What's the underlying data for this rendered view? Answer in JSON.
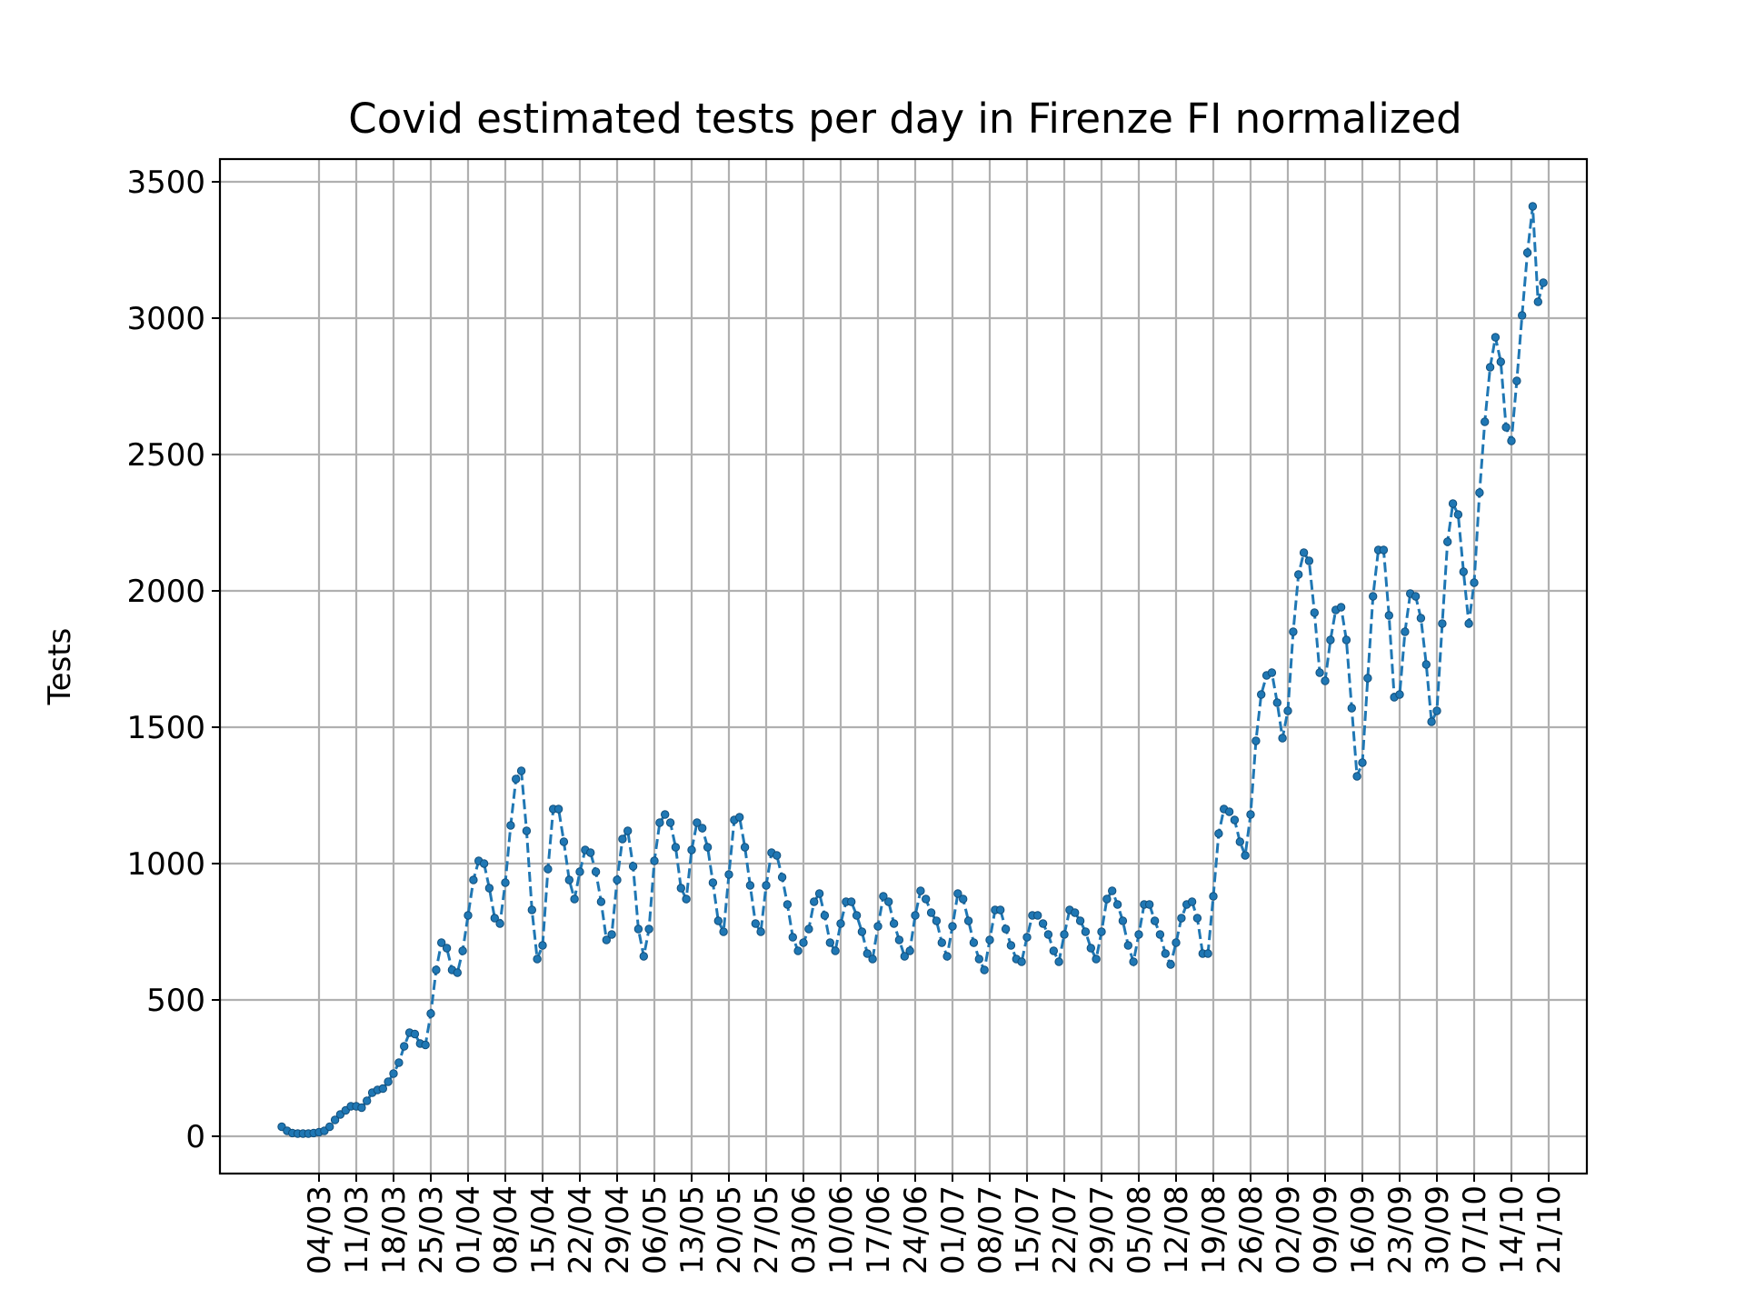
{
  "chart_data": {
    "type": "line",
    "title": "Covid estimated tests per day in Firenze FI normalized",
    "xlabel": "",
    "ylabel": "Tests",
    "x_start": "26/02",
    "x_tick_labels": [
      "04/03",
      "11/03",
      "18/03",
      "25/03",
      "01/04",
      "08/04",
      "15/04",
      "22/04",
      "29/04",
      "06/05",
      "13/05",
      "20/05",
      "27/05",
      "03/06",
      "10/06",
      "17/06",
      "24/06",
      "01/07",
      "08/07",
      "15/07",
      "22/07",
      "29/07",
      "05/08",
      "12/08",
      "19/08",
      "26/08",
      "02/09",
      "09/09",
      "16/09",
      "23/09",
      "30/09",
      "07/10",
      "14/10",
      "21/10"
    ],
    "y_ticks": [
      0,
      500,
      1000,
      1500,
      2000,
      2500,
      3000,
      3500
    ],
    "ylim": [
      -150,
      3580
    ],
    "grid": true,
    "series": [
      {
        "name": "",
        "color": "#1f77b4",
        "values": [
          35,
          20,
          12,
          10,
          10,
          10,
          12,
          15,
          20,
          35,
          60,
          80,
          95,
          110,
          110,
          105,
          130,
          160,
          170,
          175,
          200,
          230,
          270,
          330,
          380,
          375,
          340,
          335,
          450,
          610,
          710,
          690,
          610,
          600,
          680,
          810,
          940,
          1010,
          1000,
          910,
          800,
          780,
          930,
          1140,
          1310,
          1340,
          1120,
          830,
          650,
          700,
          980,
          1200,
          1200,
          1080,
          940,
          870,
          970,
          1050,
          1040,
          970,
          860,
          720,
          740,
          940,
          1090,
          1120,
          990,
          760,
          660,
          760,
          1010,
          1150,
          1180,
          1150,
          1060,
          910,
          870,
          1050,
          1150,
          1130,
          1060,
          930,
          790,
          750,
          960,
          1160,
          1170,
          1060,
          920,
          780,
          750,
          920,
          1040,
          1030,
          950,
          850,
          730,
          680,
          710,
          760,
          860,
          890,
          810,
          710,
          680,
          780,
          860,
          860,
          810,
          750,
          670,
          650,
          770,
          880,
          860,
          780,
          720,
          660,
          680,
          810,
          900,
          870,
          820,
          790,
          710,
          660,
          770,
          890,
          870,
          790,
          710,
          650,
          610,
          720,
          830,
          830,
          760,
          700,
          650,
          640,
          730,
          810,
          810,
          780,
          740,
          680,
          640,
          740,
          830,
          820,
          790,
          750,
          690,
          650,
          750,
          870,
          900,
          850,
          790,
          700,
          640,
          740,
          850,
          850,
          790,
          740,
          670,
          630,
          710,
          800,
          850,
          860,
          800,
          670,
          670,
          880,
          1110,
          1200,
          1190,
          1160,
          1080,
          1030,
          1180,
          1450,
          1620,
          1690,
          1700,
          1590,
          1460,
          1560,
          1850,
          2060,
          2140,
          2110,
          1920,
          1700,
          1670,
          1820,
          1930,
          1940,
          1820,
          1570,
          1320,
          1370,
          1680,
          1980,
          2150,
          2150,
          1910,
          1610,
          1620,
          1850,
          1990,
          1980,
          1900,
          1730,
          1520,
          1560,
          1880,
          2180,
          2320,
          2280,
          2070,
          1880,
          2030,
          2360,
          2620,
          2820,
          2930,
          2840,
          2600,
          2550,
          2770,
          3010,
          3240,
          3410,
          3060,
          3130
        ]
      }
    ]
  }
}
